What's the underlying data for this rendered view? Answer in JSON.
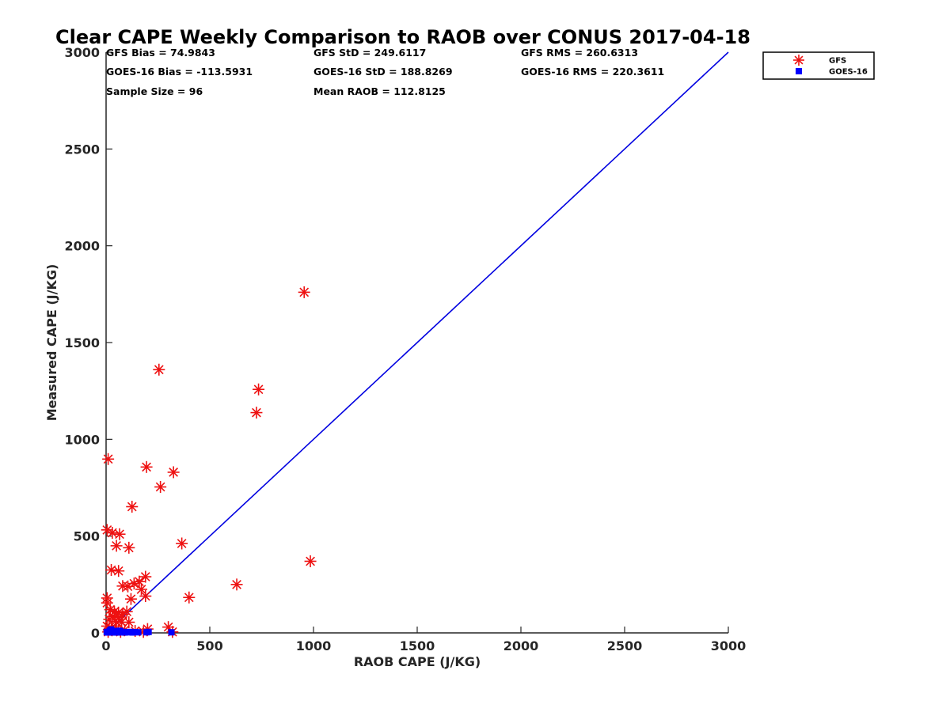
{
  "chart_data": {
    "type": "scatter",
    "title": "Clear CAPE Weekly Comparison to RAOB over CONUS 2017-04-18",
    "xlabel": "RAOB CAPE (J/KG)",
    "ylabel": "Measured CAPE (J/KG)",
    "xlim": [
      0,
      3000
    ],
    "ylim": [
      0,
      3000
    ],
    "x_ticks": [
      0,
      500,
      1000,
      1500,
      2000,
      2500,
      3000
    ],
    "y_ticks": [
      0,
      500,
      1000,
      1500,
      2000,
      2500,
      3000
    ],
    "x_tick_labels": [
      "0",
      "500",
      "1000",
      "1500",
      "2000",
      "2500",
      "3000"
    ],
    "y_tick_labels": [
      "0",
      "500",
      "1000",
      "1500",
      "2000",
      "2500",
      "3000"
    ],
    "grid": false,
    "legend_position": "top-right",
    "reference_line": {
      "x": [
        0,
        3000
      ],
      "y": [
        0,
        3000
      ],
      "color": "#0000e0"
    },
    "stats": [
      [
        "GFS Bias = 74.9843",
        "GFS StD = 249.6117",
        "GFS RMS = 260.6313"
      ],
      [
        "GOES-16 Bias = -113.5931",
        "GOES-16 StD = 188.8269",
        "GOES-16 RMS = 220.3611"
      ],
      [
        "Sample Size = 96",
        "Mean RAOB = 112.8125",
        ""
      ]
    ],
    "series": [
      {
        "name": "GFS",
        "marker": "asterisk",
        "color": "#ee1111",
        "points": [
          [
            955,
            1760
          ],
          [
            255,
            1360
          ],
          [
            735,
            1258
          ],
          [
            725,
            1138
          ],
          [
            10,
            898
          ],
          [
            195,
            857
          ],
          [
            325,
            830
          ],
          [
            262,
            754
          ],
          [
            125,
            652
          ],
          [
            365,
            462
          ],
          [
            985,
            370
          ],
          [
            5,
            532
          ],
          [
            30,
            517
          ],
          [
            65,
            510
          ],
          [
            50,
            450
          ],
          [
            110,
            440
          ],
          [
            25,
            325
          ],
          [
            60,
            320
          ],
          [
            190,
            290
          ],
          [
            160,
            265
          ],
          [
            135,
            255
          ],
          [
            80,
            242
          ],
          [
            105,
            240
          ],
          [
            170,
            225
          ],
          [
            400,
            183
          ],
          [
            630,
            250
          ],
          [
            5,
            180
          ],
          [
            190,
            190
          ],
          [
            120,
            175
          ],
          [
            5,
            155
          ],
          [
            20,
            120
          ],
          [
            40,
            110
          ],
          [
            60,
            105
          ],
          [
            80,
            95
          ],
          [
            100,
            110
          ],
          [
            30,
            85
          ],
          [
            15,
            70
          ],
          [
            45,
            60
          ],
          [
            75,
            55
          ],
          [
            110,
            55
          ],
          [
            5,
            35
          ],
          [
            25,
            25
          ],
          [
            50,
            20
          ],
          [
            90,
            15
          ],
          [
            140,
            10
          ],
          [
            200,
            20
          ],
          [
            300,
            30
          ],
          [
            320,
            5
          ],
          [
            10,
            5
          ],
          [
            70,
            5
          ],
          [
            180,
            5
          ],
          [
            60,
            80
          ]
        ]
      },
      {
        "name": "GOES-16",
        "marker": "square",
        "color": "#0000ff",
        "points": [
          [
            3,
            5
          ],
          [
            8,
            2
          ],
          [
            14,
            6
          ],
          [
            20,
            3
          ],
          [
            26,
            8
          ],
          [
            32,
            2
          ],
          [
            38,
            5
          ],
          [
            44,
            3
          ],
          [
            50,
            6
          ],
          [
            56,
            2
          ],
          [
            62,
            4
          ],
          [
            68,
            7
          ],
          [
            75,
            3
          ],
          [
            82,
            5
          ],
          [
            90,
            2
          ],
          [
            98,
            4
          ],
          [
            108,
            3
          ],
          [
            118,
            5
          ],
          [
            128,
            2
          ],
          [
            140,
            4
          ],
          [
            155,
            3
          ],
          [
            195,
            3
          ],
          [
            205,
            5
          ],
          [
            315,
            3
          ],
          [
            18,
            12
          ],
          [
            42,
            10
          ],
          [
            66,
            11
          ],
          [
            24,
            18
          ]
        ]
      }
    ]
  }
}
